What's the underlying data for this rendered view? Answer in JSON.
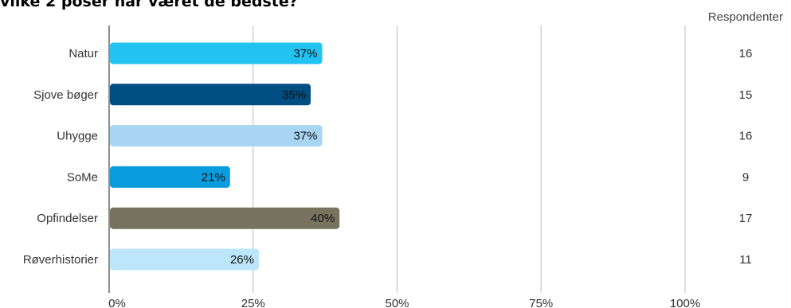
{
  "chart_data": {
    "type": "bar",
    "orientation": "horizontal",
    "title": "vilke 2 poser har været de bedste?",
    "categories": [
      "Natur",
      "Sjove bøger",
      "Uhygge",
      "SoMe",
      "Opfindelser",
      "Røverhistorier"
    ],
    "values": [
      37,
      35,
      37,
      21,
      40,
      26
    ],
    "value_labels": [
      "37%",
      "35%",
      "37%",
      "21%",
      "40%",
      "26%"
    ],
    "bar_colors": [
      "#22C3F1",
      "#004E82",
      "#A8D5F3",
      "#0A9CDC",
      "#77735F",
      "#BDE6FA"
    ],
    "x_ticks": [
      "0%",
      "25%",
      "50%",
      "75%",
      "100%"
    ],
    "xlim": [
      0,
      100
    ],
    "grid": true,
    "respondents_header": "Respondenter",
    "respondents": [
      16,
      15,
      16,
      9,
      17,
      11
    ]
  }
}
